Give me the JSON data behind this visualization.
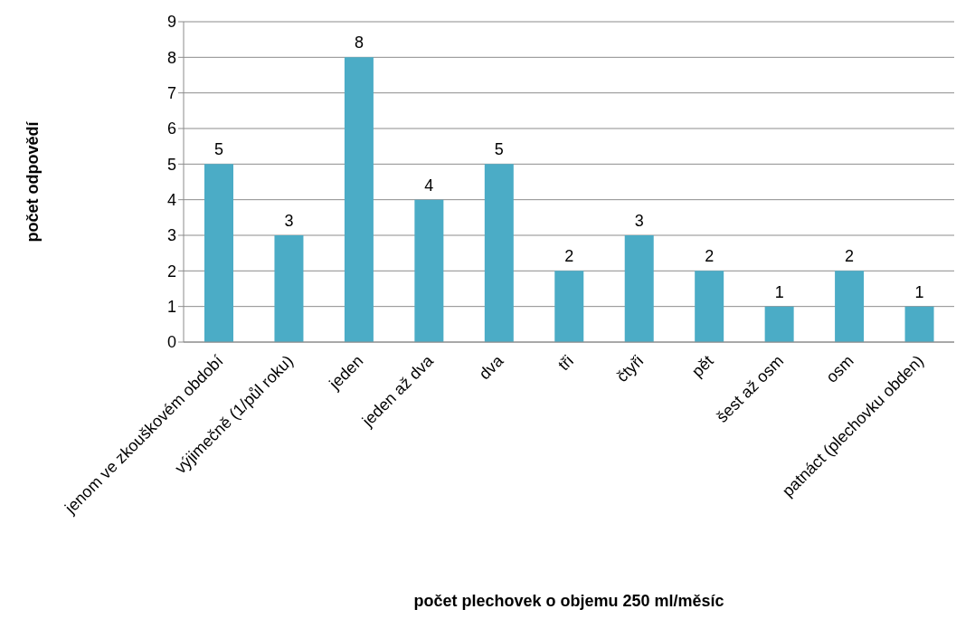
{
  "chart_data": {
    "type": "bar",
    "xlabel": "počet plechovek o objemu 250 ml/měsíc",
    "ylabel": "počet odpovědí",
    "categories": [
      "jenom ve zkouškovém období",
      "výjimečně (1/půl roku)",
      "jeden",
      "jeden až dva",
      "dva",
      "tři",
      "čtyři",
      "pět",
      "šest až osm",
      "osm",
      "patnáct (plechovku obden)"
    ],
    "values": [
      5,
      3,
      8,
      4,
      5,
      2,
      3,
      2,
      1,
      2,
      1
    ],
    "color": "#4bacc6",
    "ylim": [
      0,
      9
    ],
    "yticks": [
      0,
      1,
      2,
      3,
      4,
      5,
      6,
      7,
      8,
      9
    ],
    "grid": "y",
    "data_labels": true
  }
}
